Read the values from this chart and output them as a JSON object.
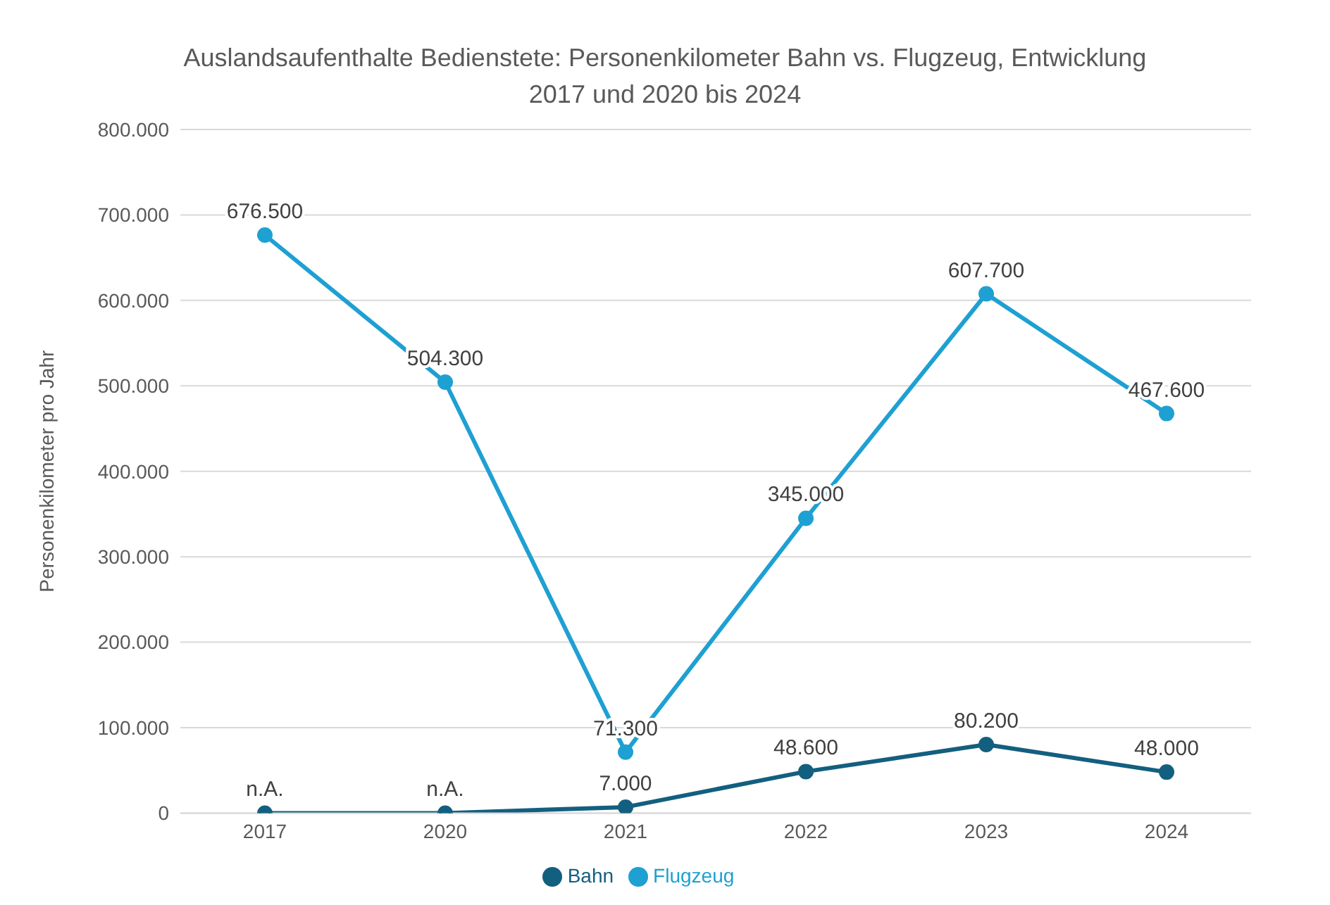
{
  "chart_data": {
    "type": "line",
    "title": "Auslandsaufenthalte Bedienstete: Personenkilometer Bahn vs. Flugzeug, Entwicklung\n2017 und 2020 bis 2024",
    "ylabel": "Personenkilometer pro Jahr",
    "categories": [
      "2017",
      "2020",
      "2021",
      "2022",
      "2023",
      "2024"
    ],
    "series": [
      {
        "name": "Bahn",
        "color": "#135f7f",
        "values": [
          0,
          0,
          7000,
          48600,
          80200,
          48000
        ],
        "value_labels": [
          "n.A.",
          "n.A.",
          "7.000",
          "48.600",
          "80.200",
          "48.000"
        ]
      },
      {
        "name": "Flugzeug",
        "color": "#1ea0d2",
        "values": [
          676500,
          504300,
          71300,
          345000,
          607700,
          467600
        ],
        "value_labels": [
          "676.500",
          "504.300",
          "71.300",
          "345.000",
          "607.700",
          "467.600"
        ]
      }
    ],
    "ylim": [
      0,
      800000
    ],
    "yticks": [
      {
        "value": 0,
        "label": "0"
      },
      {
        "value": 100000,
        "label": "100.000"
      },
      {
        "value": 200000,
        "label": "200.000"
      },
      {
        "value": 300000,
        "label": "300.000"
      },
      {
        "value": 400000,
        "label": "400.000"
      },
      {
        "value": 500000,
        "label": "500.000"
      },
      {
        "value": 600000,
        "label": "600.000"
      },
      {
        "value": 700000,
        "label": "700.000"
      },
      {
        "value": 800000,
        "label": "800.000"
      }
    ],
    "grid": "y",
    "legend": "bottom",
    "marker": "circle",
    "line_style": "solid"
  }
}
